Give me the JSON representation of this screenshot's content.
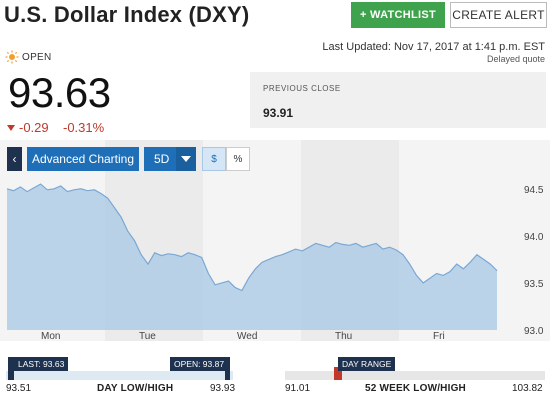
{
  "header": {
    "title": "U.S. Dollar Index (DXY)",
    "watchlist_label": "+ WATCHLIST",
    "create_alert_label": "CREATE ALERT"
  },
  "quote": {
    "status": "OPEN",
    "last_updated": "Last Updated: Nov 17, 2017 at 1:41 p.m. EST",
    "delayed_note": "Delayed quote",
    "price": "93.63",
    "change": "-0.29",
    "change_percent": "-0.31%",
    "previous_close_label": "PREVIOUS CLOSE",
    "previous_close_value": "93.91"
  },
  "toolbar": {
    "back_label": "‹",
    "advanced_charting_label": "Advanced Charting",
    "range_label": "5D",
    "dollar_label": "$",
    "percent_label": "%"
  },
  "chart_data": {
    "type": "area",
    "x_labels": [
      "Mon",
      "Tue",
      "Wed",
      "Thu",
      "Fri"
    ],
    "y_ticks": [
      "94.5",
      "94.0",
      "93.5",
      "93.0"
    ],
    "ylim": [
      93.0,
      94.7
    ],
    "series": [
      {
        "values": [
          94.5,
          94.48,
          94.52,
          94.47,
          94.51,
          94.55,
          94.49,
          94.5,
          94.53,
          94.47,
          94.49,
          94.5,
          94.48,
          94.49,
          94.45,
          94.4,
          94.3,
          94.2,
          94.05,
          93.95,
          93.8,
          93.7,
          93.82,
          93.79,
          93.81,
          93.8,
          93.78,
          93.82,
          93.8,
          93.77,
          93.6,
          93.48,
          93.5,
          93.52,
          93.45,
          93.42,
          93.55,
          93.65,
          93.72,
          93.75,
          93.78,
          93.8,
          93.83,
          93.86,
          93.84,
          93.88,
          93.92,
          93.9,
          93.88,
          93.93,
          93.91,
          93.9,
          93.92,
          93.88,
          93.9,
          93.92,
          93.86,
          93.88,
          93.85,
          93.8,
          93.7,
          93.58,
          93.5,
          93.55,
          93.6,
          93.58,
          93.62,
          93.7,
          93.65,
          93.72,
          93.8,
          93.75,
          93.7,
          93.63
        ]
      }
    ],
    "accent_color": "#a8c8e6",
    "line_color": "#7aa8d4",
    "grid": false
  },
  "day_range": {
    "last_tag": "LAST: 93.63",
    "open_tag": "OPEN: 93.87",
    "low": "93.51",
    "high": "93.93",
    "caption": "DAY LOW/HIGH",
    "last_value": 93.63,
    "open_value": 93.87
  },
  "week52_range": {
    "tag": "DAY RANGE",
    "low": "91.01",
    "high": "103.82",
    "caption": "52 WEEK LOW/HIGH"
  }
}
